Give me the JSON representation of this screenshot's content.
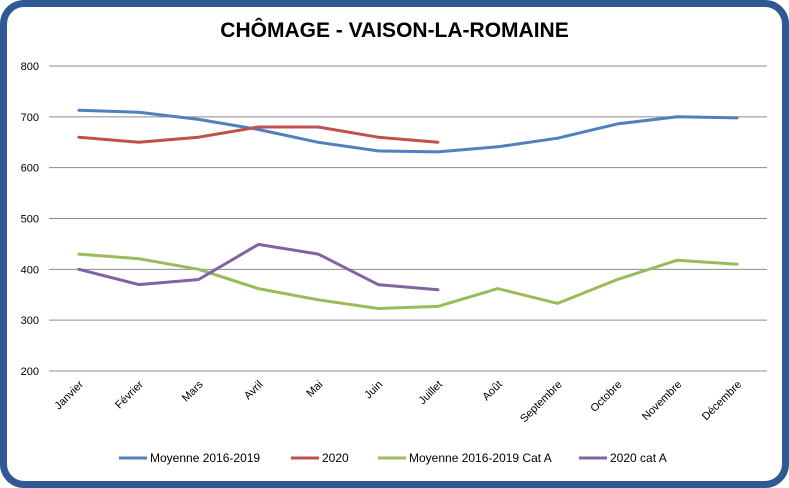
{
  "chart_data": {
    "type": "line",
    "title": "CHÔMAGE - VAISON-LA-ROMAINE",
    "xlabel": "",
    "ylabel": "",
    "ylim": [
      200,
      800
    ],
    "yticks": [
      200,
      300,
      400,
      500,
      600,
      700,
      800
    ],
    "grid": true,
    "legend_position": "bottom",
    "categories": [
      "Janvier",
      "Février",
      "Mars",
      "Avril",
      "Mai",
      "Juin",
      "Juillet",
      "Août",
      "Septembre",
      "Octobre",
      "Novembre",
      "Décembre"
    ],
    "series": [
      {
        "name": "Moyenne 2016-2019",
        "color": "#4f81bd",
        "values": [
          713,
          709,
          695,
          675,
          650,
          633,
          631,
          641,
          658,
          686,
          700,
          698
        ]
      },
      {
        "name": "2020",
        "color": "#c0504d",
        "values": [
          660,
          650,
          660,
          680,
          680,
          660,
          650,
          null,
          null,
          null,
          null,
          null
        ]
      },
      {
        "name": "Moyenne 2016-2019 Cat A",
        "color": "#9bbb59",
        "values": [
          430,
          421,
          400,
          362,
          340,
          323,
          327,
          362,
          333,
          380,
          418,
          410
        ]
      },
      {
        "name": "2020 cat A",
        "color": "#8064a2",
        "values": [
          400,
          370,
          380,
          449,
          430,
          370,
          360,
          null,
          null,
          null,
          null,
          null
        ]
      }
    ]
  }
}
